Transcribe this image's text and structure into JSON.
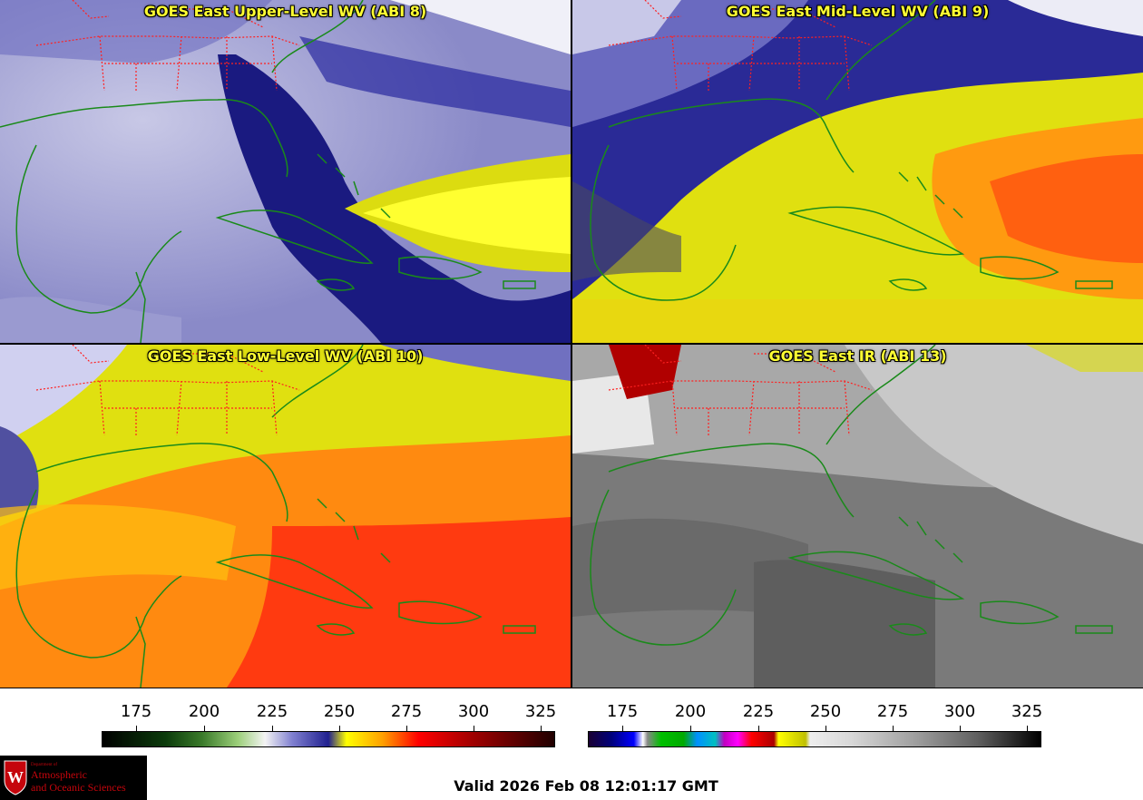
{
  "panels": [
    {
      "title": "GOES East Upper-Level WV (ABI 8)",
      "scheme": "wv_upper"
    },
    {
      "title": "GOES East Mid-Level WV (ABI 9)",
      "scheme": "wv_mid"
    },
    {
      "title": "GOES East Low-Level WV (ABI 10)",
      "scheme": "wv_low"
    },
    {
      "title": "GOES East IR (ABI 13)",
      "scheme": "ir"
    }
  ],
  "colorbars": {
    "wv": {
      "ticks": [
        "175",
        "200",
        "225",
        "250",
        "275",
        "300",
        "325"
      ]
    },
    "ir": {
      "ticks": [
        "175",
        "200",
        "225",
        "250",
        "275",
        "300",
        "325"
      ]
    }
  },
  "logo": {
    "dept": "Department of",
    "line1": "Atmospheric",
    "line2": "and Oceanic Sciences",
    "shield_letter": "W"
  },
  "valid_time": "Valid 2026 Feb 08 12:01:17 GMT",
  "colors": {
    "coast": "#1a8a1a",
    "state_borders": "#ff2020",
    "title_text": "#ffff33"
  }
}
